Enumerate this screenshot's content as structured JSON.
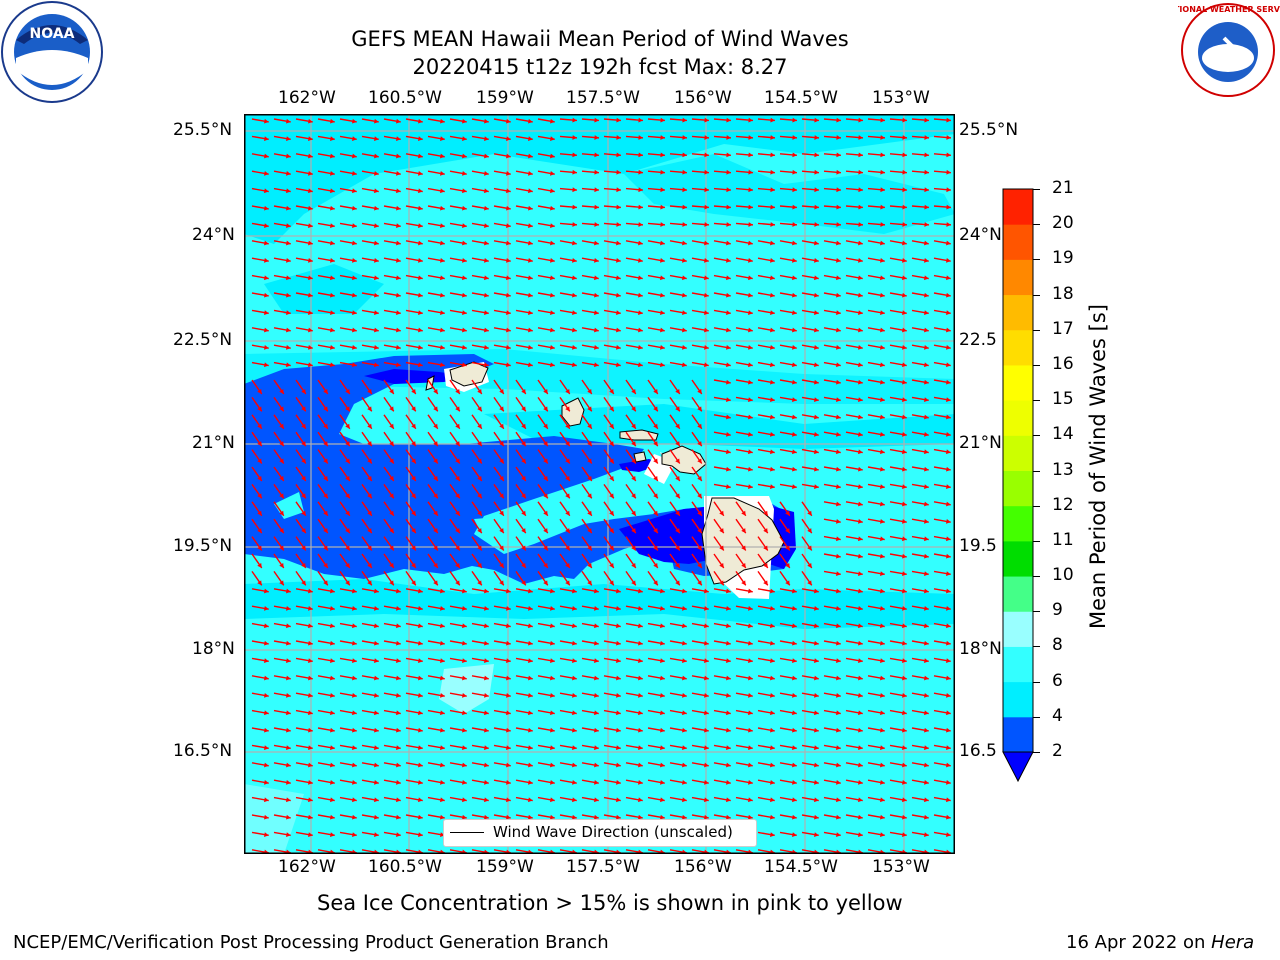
{
  "title": {
    "line1": "GEFS MEAN Hawaii Mean Period of Wind Waves",
    "line2": "20220415 t12z 192h fcst   Max: 8.27"
  },
  "logos": {
    "left": "noaa-logo",
    "right": "nws-logo",
    "left_text": "NOAA",
    "right_text": "NATIONAL WEATHER SERVICE"
  },
  "axes": {
    "lon_labels": [
      "162°W",
      "160.5°W",
      "159°W",
      "157.5°W",
      "156°W",
      "154.5°W",
      "153°W"
    ],
    "lat_labels": [
      "25.5°N",
      "24°N",
      "22.5°N",
      "21°N",
      "19.5°N",
      "18°N",
      "16.5°N"
    ],
    "lat_labels_right": [
      "25.5°N",
      "24°N",
      "22.5",
      "21°N",
      "19.5",
      "18°N",
      "16.5"
    ],
    "lon_values": [
      -162,
      -160.5,
      -159,
      -157.5,
      -156,
      -154.5,
      -153
    ],
    "lat_values": [
      25.5,
      24,
      22.5,
      21,
      19.5,
      18,
      16.5
    ]
  },
  "legend": {
    "label": "Wind Wave Direction (unscaled)"
  },
  "colorbar": {
    "label": "Mean Period of Wind Waves [s]",
    "ticks": [
      "2",
      "4",
      "6",
      "8",
      "9",
      "10",
      "11",
      "12",
      "13",
      "14",
      "15",
      "16",
      "17",
      "18",
      "19",
      "20",
      "21"
    ],
    "colors": [
      "#0055ff",
      "#00eeff",
      "#33ffff",
      "#99ffff",
      "#44ff88",
      "#00dd00",
      "#44ff00",
      "#99ff00",
      "#ccff00",
      "#eeff00",
      "#ffff00",
      "#ffdd00",
      "#ffbb00",
      "#ff8800",
      "#ff5500",
      "#ff2200"
    ],
    "under_color": "#0000ff"
  },
  "chart_data": {
    "type": "heatmap",
    "title": "GEFS MEAN Hawaii Mean Period of Wind Waves",
    "subtitle": "20220415 t12z 192h fcst   Max: 8.27",
    "variable": "Mean Period of Wind Waves [s]",
    "max": 8.27,
    "lon_range": [
      -163,
      -152.3
    ],
    "lat_range": [
      14.8,
      25.8
    ],
    "vector_field": "Wind Wave Direction (unscaled)",
    "vector_color": "#ff0000",
    "grid": true
  },
  "note": "Sea Ice Concentration > 15% is shown in pink to yellow",
  "footer": {
    "left": "NCEP/EMC/Verification Post Processing Product Generation Branch",
    "right_prefix": "16 Apr 2022 on ",
    "right_host": "Hera"
  }
}
